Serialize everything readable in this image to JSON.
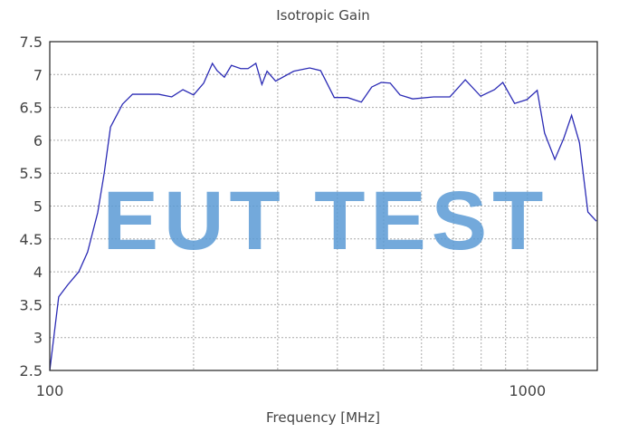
{
  "chart_data": {
    "type": "line",
    "title": "Isotropic Gain",
    "x_label": "Frequency [MHz]",
    "x_scale": "log",
    "grid": true,
    "xlim": [
      100,
      1400
    ],
    "xticks": [
      100,
      1000
    ],
    "x_minor_ticks": [
      200,
      300,
      400,
      500,
      600,
      700,
      800,
      900
    ],
    "ylim": [
      2.5,
      7.5
    ],
    "yticks": [
      2.5,
      3,
      3.5,
      4,
      4.5,
      5,
      5.5,
      6,
      6.5,
      7,
      7.5
    ],
    "annotation": "EUT TEST",
    "series": [
      {
        "color": "#2b2bb5",
        "x": [
          100,
          104.4,
          109,
          115,
          120,
          126,
          130,
          134,
          142,
          149,
          169,
          180,
          190,
          200,
          210,
          219,
          224,
          232,
          240,
          251,
          260,
          270,
          278,
          285,
          297,
          324,
          350,
          369,
          394,
          420,
          449,
          472,
          494,
          516,
          541,
          575,
          636,
          688,
          741,
          798,
          853,
          888,
          940,
          998,
          1048,
          1086,
          1141,
          1191,
          1237,
          1285,
          1338,
          1394
        ],
        "values": [
          2.5,
          3.62,
          3.8,
          4.0,
          4.3,
          4.9,
          5.5,
          6.2,
          6.55,
          6.7,
          6.7,
          6.66,
          6.77,
          6.69,
          6.87,
          7.17,
          7.06,
          6.96,
          7.14,
          7.09,
          7.09,
          7.17,
          6.85,
          7.05,
          6.9,
          7.05,
          7.1,
          7.06,
          6.65,
          6.65,
          6.58,
          6.81,
          6.88,
          6.87,
          6.69,
          6.63,
          6.66,
          6.66,
          6.92,
          6.67,
          6.77,
          6.88,
          6.56,
          6.62,
          6.76,
          6.11,
          5.71,
          6.03,
          6.38,
          5.96,
          4.91,
          4.77
        ]
      }
    ]
  }
}
